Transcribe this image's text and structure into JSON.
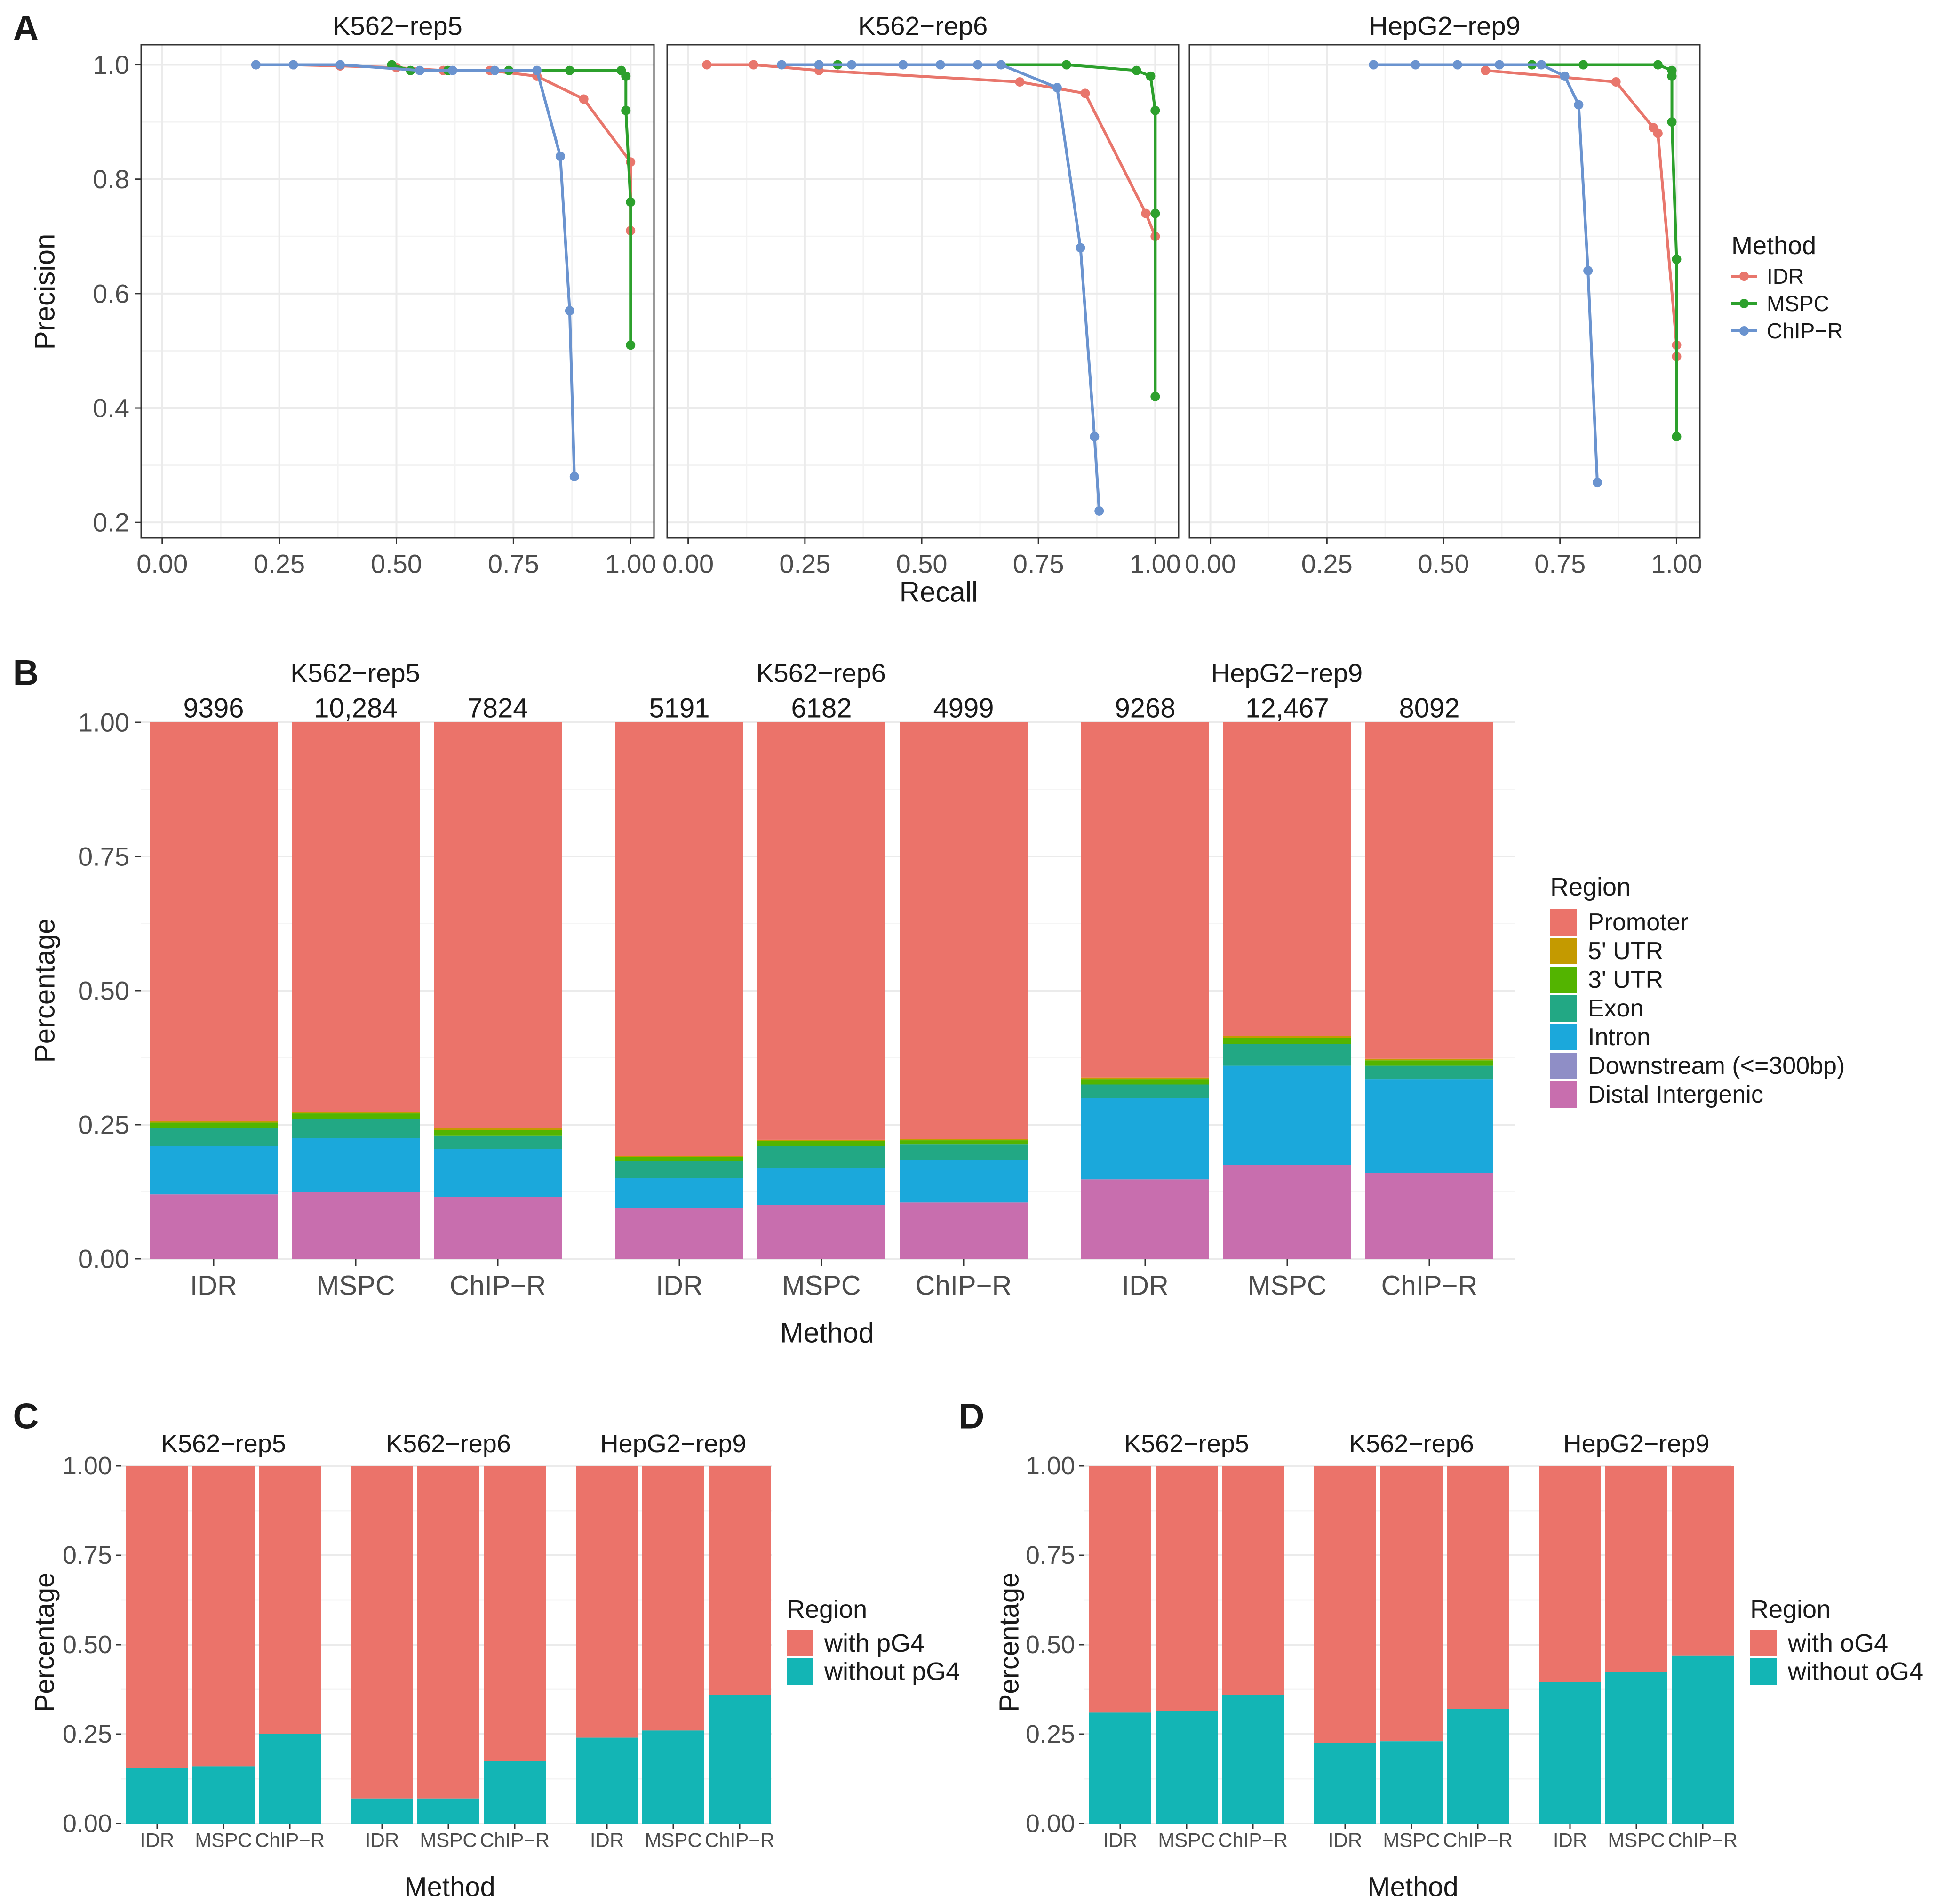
{
  "colors": {
    "IDR": "#E8766C",
    "MSPC": "#2CA02C",
    "ChIP-R": "#6A93CF",
    "Promoter": "#EB736A",
    "5' UTR": "#C49A00",
    "3' UTR": "#53B400",
    "Exon": "#22A884",
    "Intron": "#1BA8DB",
    "Downstream (<=300bp)": "#8F8EC6",
    "Distal Intergenic": "#C86EAE",
    "with": "#EB736A",
    "without": "#13B5B5",
    "grid": "#EBEBEB",
    "axis": "#333333",
    "text": "#1a1a1a"
  },
  "panel_labels": [
    "A",
    "B",
    "C",
    "D"
  ],
  "chart_data": [
    {
      "id": "A",
      "type": "line",
      "title": "",
      "xlabel": "Recall",
      "ylabel": "Precision",
      "xlim": [
        0,
        1
      ],
      "ylim": [
        0.2,
        1.0
      ],
      "xticks": [
        "0.00",
        "0.25",
        "0.50",
        "0.75",
        "1.00"
      ],
      "yticks": [
        "0.2",
        "0.4",
        "0.6",
        "0.8",
        "1.0"
      ],
      "legend": {
        "title": "Method",
        "entries": [
          "IDR",
          "MSPC",
          "ChIP−R"
        ],
        "position": "right"
      },
      "facets": [
        {
          "name": "K562−rep5",
          "series": [
            {
              "name": "IDR",
              "points": [
                [
                  0.2,
                  1.0
                ],
                [
                  0.28,
                  1.0
                ],
                [
                  0.38,
                  0.998
                ],
                [
                  0.5,
                  0.995
                ],
                [
                  0.6,
                  0.99
                ],
                [
                  0.7,
                  0.99
                ],
                [
                  0.8,
                  0.98
                ],
                [
                  0.9,
                  0.94
                ],
                [
                  1.0,
                  0.83
                ],
                [
                  1.0,
                  0.71
                ]
              ]
            },
            {
              "name": "MSPC",
              "points": [
                [
                  0.49,
                  1.0
                ],
                [
                  0.53,
                  0.99
                ],
                [
                  0.61,
                  0.99
                ],
                [
                  0.74,
                  0.99
                ],
                [
                  0.87,
                  0.99
                ],
                [
                  0.98,
                  0.99
                ],
                [
                  0.99,
                  0.98
                ],
                [
                  0.99,
                  0.92
                ],
                [
                  1.0,
                  0.76
                ],
                [
                  1.0,
                  0.51
                ]
              ]
            },
            {
              "name": "ChIP−R",
              "points": [
                [
                  0.2,
                  1.0
                ],
                [
                  0.28,
                  1.0
                ],
                [
                  0.38,
                  1.0
                ],
                [
                  0.55,
                  0.99
                ],
                [
                  0.62,
                  0.99
                ],
                [
                  0.71,
                  0.99
                ],
                [
                  0.8,
                  0.99
                ],
                [
                  0.85,
                  0.84
                ],
                [
                  0.87,
                  0.57
                ],
                [
                  0.88,
                  0.28
                ]
              ]
            }
          ]
        },
        {
          "name": "K562−rep6",
          "series": [
            {
              "name": "IDR",
              "points": [
                [
                  0.04,
                  1.0
                ],
                [
                  0.14,
                  1.0
                ],
                [
                  0.28,
                  0.99
                ],
                [
                  0.71,
                  0.97
                ],
                [
                  0.85,
                  0.95
                ],
                [
                  0.98,
                  0.74
                ],
                [
                  1.0,
                  0.7
                ]
              ]
            },
            {
              "name": "MSPC",
              "points": [
                [
                  0.28,
                  1.0
                ],
                [
                  0.32,
                  1.0
                ],
                [
                  0.81,
                  1.0
                ],
                [
                  0.96,
                  0.99
                ],
                [
                  0.99,
                  0.98
                ],
                [
                  1.0,
                  0.92
                ],
                [
                  1.0,
                  0.74
                ],
                [
                  1.0,
                  0.42
                ]
              ]
            },
            {
              "name": "ChIP−R",
              "points": [
                [
                  0.2,
                  1.0
                ],
                [
                  0.28,
                  1.0
                ],
                [
                  0.35,
                  1.0
                ],
                [
                  0.46,
                  1.0
                ],
                [
                  0.54,
                  1.0
                ],
                [
                  0.62,
                  1.0
                ],
                [
                  0.67,
                  1.0
                ],
                [
                  0.79,
                  0.96
                ],
                [
                  0.84,
                  0.68
                ],
                [
                  0.87,
                  0.35
                ],
                [
                  0.88,
                  0.22
                ]
              ]
            }
          ]
        },
        {
          "name": "HepG2−rep9",
          "series": [
            {
              "name": "IDR",
              "points": [
                [
                  0.59,
                  0.99
                ],
                [
                  0.87,
                  0.97
                ],
                [
                  0.95,
                  0.89
                ],
                [
                  0.96,
                  0.88
                ],
                [
                  1.0,
                  0.51
                ],
                [
                  1.0,
                  0.49
                ]
              ]
            },
            {
              "name": "MSPC",
              "points": [
                [
                  0.69,
                  1.0
                ],
                [
                  0.8,
                  1.0
                ],
                [
                  0.96,
                  1.0
                ],
                [
                  0.99,
                  0.99
                ],
                [
                  0.99,
                  0.98
                ],
                [
                  0.99,
                  0.9
                ],
                [
                  1.0,
                  0.66
                ],
                [
                  1.0,
                  0.35
                ]
              ]
            },
            {
              "name": "ChIP−R",
              "points": [
                [
                  0.35,
                  1.0
                ],
                [
                  0.44,
                  1.0
                ],
                [
                  0.53,
                  1.0
                ],
                [
                  0.62,
                  1.0
                ],
                [
                  0.71,
                  1.0
                ],
                [
                  0.76,
                  0.98
                ],
                [
                  0.79,
                  0.93
                ],
                [
                  0.81,
                  0.64
                ],
                [
                  0.83,
                  0.27
                ]
              ]
            }
          ]
        }
      ]
    },
    {
      "id": "B",
      "type": "stacked-bar",
      "xlabel": "Method",
      "ylabel": "Percentage",
      "ylim": [
        0,
        1
      ],
      "yticks": [
        "0.00",
        "0.25",
        "0.50",
        "0.75",
        "1.00"
      ],
      "categories": [
        "IDR",
        "MSPC",
        "ChIP−R"
      ],
      "legend": {
        "title": "Region",
        "position": "right",
        "entries": [
          "Promoter",
          "5' UTR",
          "3' UTR",
          "Exon",
          "Intron",
          "Downstream (<=300bp)",
          "Distal Intergenic"
        ]
      },
      "stack_order": [
        "Distal Intergenic",
        "Downstream (<=300bp)",
        "Intron",
        "Exon",
        "3' UTR",
        "5' UTR",
        "Promoter"
      ],
      "facets": [
        {
          "name": "K562−rep5",
          "counts": [
            "9396",
            "10,284",
            "7824"
          ],
          "bars": [
            {
              "Distal Intergenic": 0.12,
              "Downstream (<=300bp)": 0.0,
              "Intron": 0.09,
              "Exon": 0.034,
              "3' UTR": 0.01,
              "5' UTR": 0.003,
              "Promoter": 0.743
            },
            {
              "Distal Intergenic": 0.125,
              "Downstream (<=300bp)": 0.0,
              "Intron": 0.1,
              "Exon": 0.036,
              "3' UTR": 0.01,
              "5' UTR": 0.003,
              "Promoter": 0.726
            },
            {
              "Distal Intergenic": 0.115,
              "Downstream (<=300bp)": 0.0,
              "Intron": 0.09,
              "Exon": 0.025,
              "3' UTR": 0.01,
              "5' UTR": 0.003,
              "Promoter": 0.757
            }
          ]
        },
        {
          "name": "K562−rep6",
          "counts": [
            "5191",
            "6182",
            "4999"
          ],
          "bars": [
            {
              "Distal Intergenic": 0.095,
              "Downstream (<=300bp)": 0.0,
              "Intron": 0.055,
              "Exon": 0.032,
              "3' UTR": 0.008,
              "5' UTR": 0.002,
              "Promoter": 0.808
            },
            {
              "Distal Intergenic": 0.1,
              "Downstream (<=300bp)": 0.0,
              "Intron": 0.07,
              "Exon": 0.04,
              "3' UTR": 0.01,
              "5' UTR": 0.002,
              "Promoter": 0.778
            },
            {
              "Distal Intergenic": 0.105,
              "Downstream (<=300bp)": 0.0,
              "Intron": 0.08,
              "Exon": 0.028,
              "3' UTR": 0.008,
              "5' UTR": 0.002,
              "Promoter": 0.777
            }
          ]
        },
        {
          "name": "HepG2−rep9",
          "counts": [
            "9268",
            "12,467",
            "8092"
          ],
          "bars": [
            {
              "Distal Intergenic": 0.148,
              "Downstream (<=300bp)": 0.0,
              "Intron": 0.152,
              "Exon": 0.025,
              "3' UTR": 0.01,
              "5' UTR": 0.003,
              "Promoter": 0.662
            },
            {
              "Distal Intergenic": 0.175,
              "Downstream (<=300bp)": 0.0,
              "Intron": 0.185,
              "Exon": 0.04,
              "3' UTR": 0.012,
              "5' UTR": 0.003,
              "Promoter": 0.585
            },
            {
              "Distal Intergenic": 0.16,
              "Downstream (<=300bp)": 0.0,
              "Intron": 0.175,
              "Exon": 0.025,
              "3' UTR": 0.01,
              "5' UTR": 0.003,
              "Promoter": 0.627
            }
          ]
        }
      ]
    },
    {
      "id": "C",
      "type": "stacked-bar",
      "xlabel": "Method",
      "ylabel": "Percentage",
      "ylim": [
        0,
        1
      ],
      "yticks": [
        "0.00",
        "0.25",
        "0.50",
        "0.75",
        "1.00"
      ],
      "categories": [
        "IDR",
        "MSPC",
        "ChIP−R"
      ],
      "legend": {
        "title": "Region",
        "entries": [
          "with pG4",
          "without pG4"
        ],
        "position": "right"
      },
      "facets": [
        {
          "name": "K562−rep5",
          "without": [
            0.155,
            0.16,
            0.25
          ]
        },
        {
          "name": "K562−rep6",
          "without": [
            0.07,
            0.07,
            0.175
          ]
        },
        {
          "name": "HepG2−rep9",
          "without": [
            0.24,
            0.26,
            0.36
          ]
        }
      ]
    },
    {
      "id": "D",
      "type": "stacked-bar",
      "xlabel": "Method",
      "ylabel": "Percentage",
      "ylim": [
        0,
        1
      ],
      "yticks": [
        "0.00",
        "0.25",
        "0.50",
        "0.75",
        "1.00"
      ],
      "categories": [
        "IDR",
        "MSPC",
        "ChIP−R"
      ],
      "legend": {
        "title": "Region",
        "entries": [
          "with oG4",
          "without oG4"
        ],
        "position": "right"
      },
      "facets": [
        {
          "name": "K562−rep5",
          "without": [
            0.31,
            0.315,
            0.36
          ]
        },
        {
          "name": "K562−rep6",
          "without": [
            0.225,
            0.23,
            0.32
          ]
        },
        {
          "name": "HepG2−rep9",
          "without": [
            0.395,
            0.425,
            0.47
          ]
        }
      ]
    }
  ]
}
